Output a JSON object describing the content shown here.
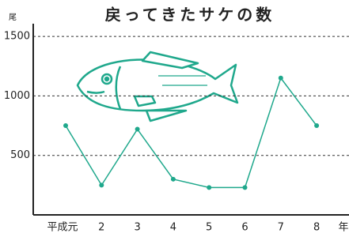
{
  "chart_data": {
    "type": "line",
    "title": "戻ってきたサケの数",
    "y_unit": "尾",
    "x_unit": "年",
    "categories": [
      "平成元",
      "2",
      "3",
      "4",
      "5",
      "6",
      "7",
      "8"
    ],
    "values": [
      750,
      250,
      720,
      300,
      230,
      230,
      1150,
      750
    ],
    "color": "#1fa88c",
    "ylim": [
      0,
      1600
    ],
    "yticks": [
      500,
      1000,
      1500
    ],
    "grid": true
  }
}
